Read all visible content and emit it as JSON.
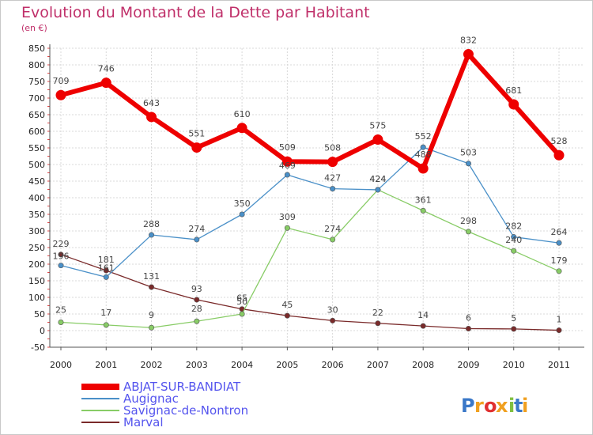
{
  "chart_data": {
    "type": "line",
    "title": "Evolution du Montant de la Dette par Habitant",
    "subtitle": "(en €)",
    "categories": [
      "2000",
      "2001",
      "2002",
      "2003",
      "2004",
      "2005",
      "2006",
      "2007",
      "2008",
      "2009",
      "2010",
      "2011"
    ],
    "y_ticks": [
      "-50",
      "0",
      "50",
      "100",
      "150",
      "200",
      "250",
      "300",
      "350",
      "400",
      "450",
      "500",
      "550",
      "600",
      "650",
      "700",
      "750",
      "800",
      "850"
    ],
    "ylim": [
      -50,
      850
    ],
    "grid": true,
    "legend_position": "bottom-left",
    "series": [
      {
        "name": "ABJAT-SUR-BANDIAT",
        "color": "#ee0000",
        "values": [
          709,
          746,
          643,
          551,
          610,
          509,
          508,
          575,
          488,
          832,
          681,
          528
        ]
      },
      {
        "name": "Augignac",
        "color": "#4a90c8",
        "values": [
          196,
          161,
          288,
          274,
          350,
          469,
          427,
          424,
          552,
          503,
          282,
          264
        ]
      },
      {
        "name": "Savignac-de-Nontron",
        "color": "#88cc66",
        "values": [
          25,
          17,
          9,
          28,
          50,
          309,
          274,
          424,
          361,
          298,
          240,
          179
        ]
      },
      {
        "name": "Marval",
        "color": "#7a2a2a",
        "values": [
          229,
          181,
          131,
          93,
          65,
          45,
          30,
          22,
          14,
          6,
          5,
          1
        ]
      }
    ],
    "legend_colors": {
      "ABJAT-SUR-BANDIAT": "#ee0000",
      "Augignac": "#4a90c8",
      "Savignac-de-Nontron": "#88cc66",
      "Marval": "#7a2a2a"
    }
  },
  "branding": {
    "logo_text": "Proxiti",
    "colors": [
      "#3a78c8",
      "#f0a020",
      "#e03030",
      "#f0a020",
      "#80c040",
      "#3a78c8",
      "#f0a020"
    ]
  },
  "colors": {
    "title": "#c0306a",
    "legend_text": "#5555ee"
  }
}
